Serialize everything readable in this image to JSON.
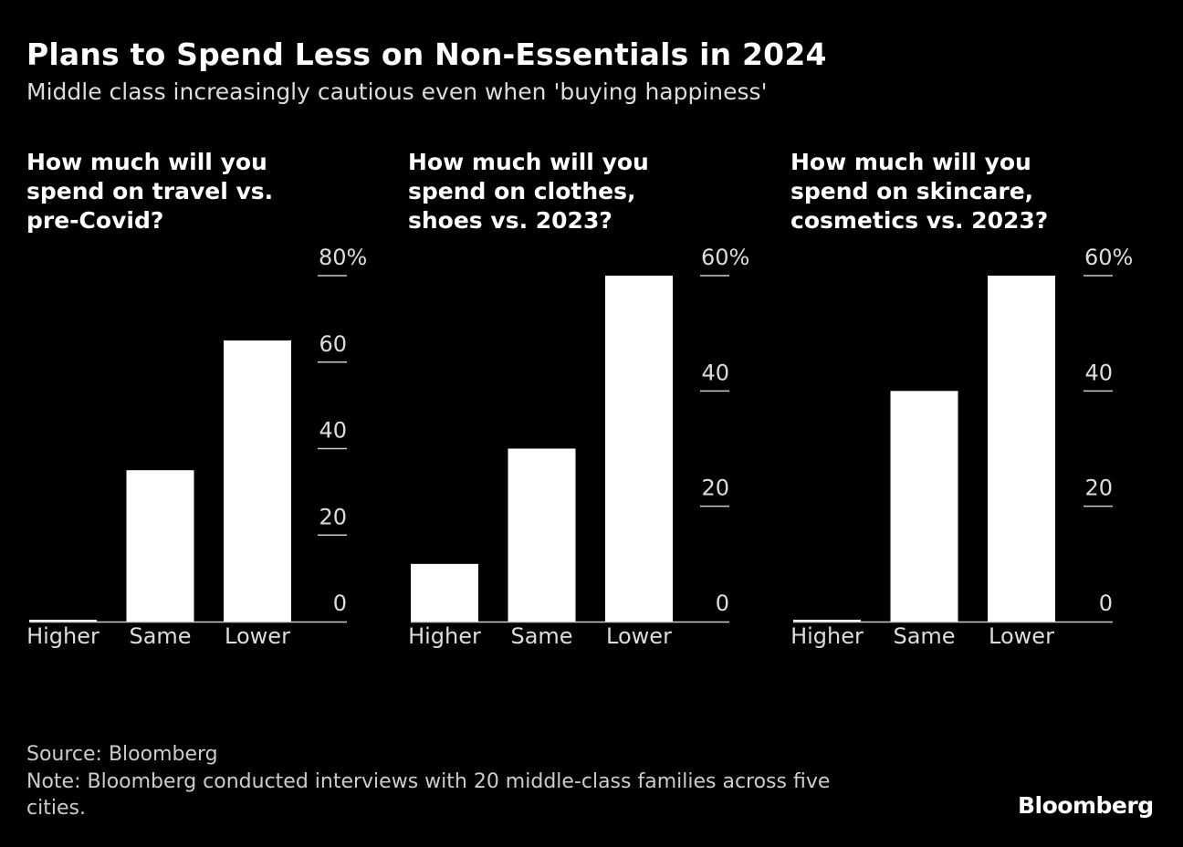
{
  "header": {
    "title": "Plans to Spend Less on Non-Essentials in 2024",
    "subtitle": "Middle class increasingly cautious even when 'buying happiness'"
  },
  "chart_data": [
    {
      "type": "bar",
      "title": "How much will you spend on travel vs. pre-Covid?",
      "title_lines": [
        "How much will you",
        "spend on travel vs.",
        "pre-Covid?"
      ],
      "categories": [
        "Higher",
        "Same",
        "Lower"
      ],
      "values": [
        0,
        35,
        65
      ],
      "ylim": [
        0,
        80
      ],
      "yticks": [
        0,
        20,
        40,
        60,
        80
      ],
      "ytick_labels": [
        "0",
        "20",
        "40",
        "60",
        "80%"
      ],
      "y_axis_position": "right",
      "xlabel": "",
      "ylabel": ""
    },
    {
      "type": "bar",
      "title": "How much will you spend on clothes, shoes vs. 2023?",
      "title_lines": [
        "How much will you",
        "spend on clothes,",
        "shoes vs. 2023?"
      ],
      "categories": [
        "Higher",
        "Same",
        "Lower"
      ],
      "values": [
        10,
        30,
        60
      ],
      "ylim": [
        0,
        60
      ],
      "yticks": [
        0,
        20,
        40,
        60
      ],
      "ytick_labels": [
        "0",
        "20",
        "40",
        "60%"
      ],
      "y_axis_position": "right",
      "xlabel": "",
      "ylabel": ""
    },
    {
      "type": "bar",
      "title": "How much will you spend on skincare, cosmetics vs. 2023?",
      "title_lines": [
        "How much will you",
        "spend on skincare,",
        "cosmetics vs. 2023?"
      ],
      "categories": [
        "Higher",
        "Same",
        "Lower"
      ],
      "values": [
        0,
        40,
        60
      ],
      "ylim": [
        0,
        60
      ],
      "yticks": [
        0,
        20,
        40,
        60
      ],
      "ytick_labels": [
        "0",
        "20",
        "40",
        "60%"
      ],
      "y_axis_position": "right",
      "xlabel": "",
      "ylabel": ""
    }
  ],
  "colors": {
    "background": "#000000",
    "bar": "#ffffff",
    "axis": "#cccccc",
    "text": "#dddddd"
  },
  "footer": {
    "source": "Source: Bloomberg",
    "note_line1": "Note: Bloomberg conducted interviews with 20 middle-class families across five",
    "note_line2": "cities.",
    "logo": "Bloomberg"
  }
}
